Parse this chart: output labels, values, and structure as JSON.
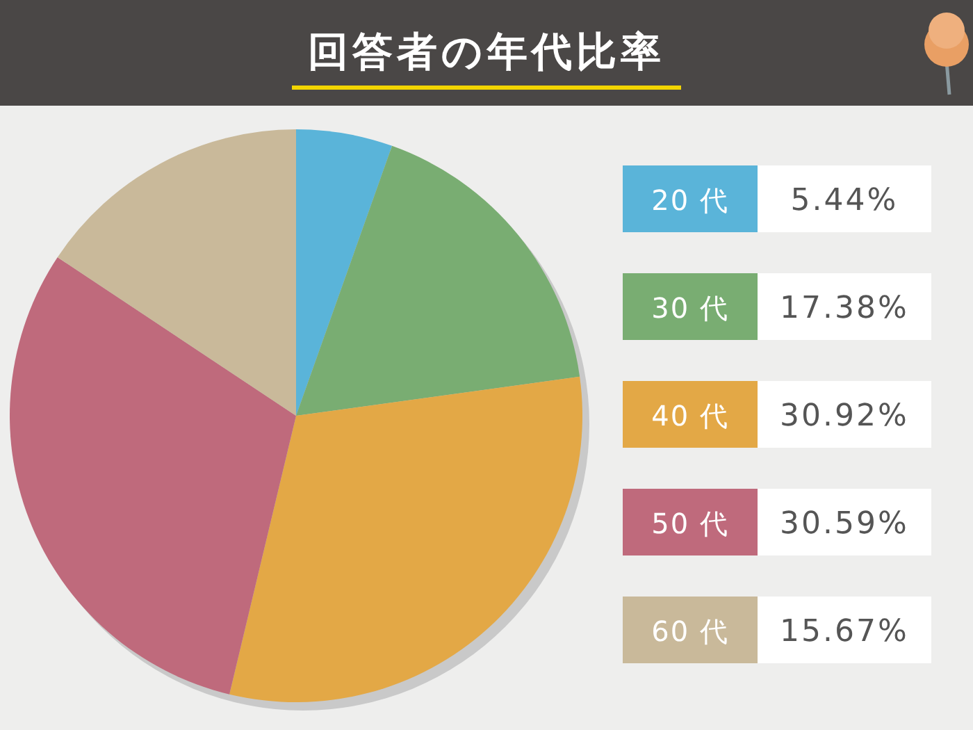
{
  "chart_data": {
    "type": "pie",
    "title": "回答者の年代比率",
    "categories": [
      "20 代",
      "30 代",
      "40 代",
      "50 代",
      "60 代"
    ],
    "values": [
      5.44,
      17.38,
      30.92,
      30.59,
      15.67
    ],
    "colors": [
      "#5ab4d9",
      "#79ad72",
      "#e3a846",
      "#bf6a7c",
      "#c9b99a"
    ],
    "value_labels": [
      "5.44%",
      "17.38%",
      "30.92%",
      "30.59%",
      "15.67%"
    ],
    "legend": "right"
  }
}
